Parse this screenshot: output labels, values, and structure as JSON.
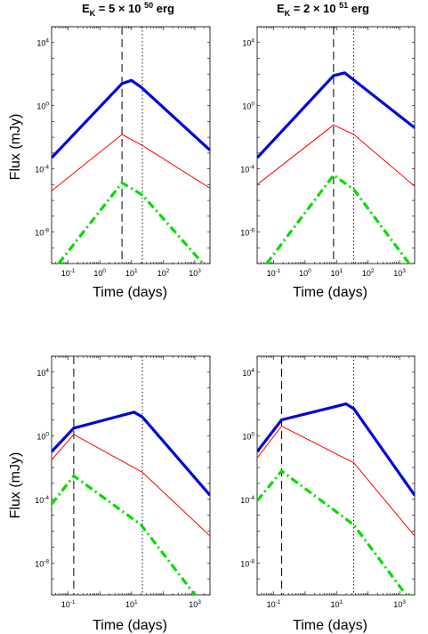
{
  "figure": {
    "column_titles": [
      {
        "prefix": "E",
        "sub": "K",
        "middle": " = 5 ",
        "times": "×",
        "base": " 10 ",
        "exp": "50",
        "unit": " erg"
      },
      {
        "prefix": "E",
        "sub": "K",
        "middle": " = 2 ",
        "times": "×",
        "base": " 10 ",
        "exp": "51",
        "unit": " erg"
      }
    ],
    "ylabel": "Flux (mJy)",
    "xlabel": "Time (days)",
    "tick_base": "10"
  },
  "chart_data": [
    {
      "type": "line",
      "x_scale": "log",
      "y_scale": "log",
      "xlim": [
        0.03,
        3000
      ],
      "ylim": [
        1e-10,
        100000.0
      ],
      "x_ticks": [
        {
          "base": "10",
          "exp": "-1"
        },
        {
          "base": "10",
          "exp": "0"
        },
        {
          "base": "10",
          "exp": "1"
        },
        {
          "base": "10",
          "exp": "2"
        },
        {
          "base": "10",
          "exp": "3"
        }
      ],
      "x_tick_values": [
        0.1,
        1,
        10,
        100,
        1000
      ],
      "y_ticks": [
        {
          "base": "10",
          "exp": "-8"
        },
        {
          "base": "10",
          "exp": "-4"
        },
        {
          "base": "10",
          "exp": "0"
        },
        {
          "base": "10",
          "exp": "4"
        }
      ],
      "y_tick_values": [
        1e-08,
        0.0001,
        1,
        10000.0
      ],
      "vlines": [
        {
          "x": 5,
          "style": "dashed"
        },
        {
          "x": 22,
          "style": "dotted"
        }
      ],
      "series": [
        {
          "style": "thick-solid",
          "color": "#0000dd",
          "x": [
            0.03,
            5,
            10,
            20,
            3000
          ],
          "y": [
            0.0005,
            25,
            40,
            15,
            0.0015
          ]
        },
        {
          "style": "thin-solid",
          "color": "#ff0000",
          "x": [
            0.03,
            5,
            22,
            3000
          ],
          "y": [
            4e-06,
            0.015,
            0.003,
            6e-06
          ]
        },
        {
          "style": "dash-dot",
          "color": "#00dd00",
          "x": [
            0.05,
            5,
            22,
            1800
          ],
          "y": [
            1e-10,
            1.3e-05,
            2.2e-06,
            1e-10
          ]
        }
      ]
    },
    {
      "type": "line",
      "x_scale": "log",
      "y_scale": "log",
      "xlim": [
        0.03,
        3000
      ],
      "ylim": [
        1e-10,
        100000.0
      ],
      "x_ticks": [
        {
          "base": "10",
          "exp": "-1"
        },
        {
          "base": "10",
          "exp": "0"
        },
        {
          "base": "10",
          "exp": "1"
        },
        {
          "base": "10",
          "exp": "2"
        },
        {
          "base": "10",
          "exp": "3"
        }
      ],
      "x_tick_values": [
        0.1,
        1,
        10,
        100,
        1000
      ],
      "y_ticks": [
        {
          "base": "10",
          "exp": "-8"
        },
        {
          "base": "10",
          "exp": "-4"
        },
        {
          "base": "10",
          "exp": "0"
        },
        {
          "base": "10",
          "exp": "4"
        }
      ],
      "y_tick_values": [
        1e-08,
        0.0001,
        1,
        10000.0
      ],
      "vlines": [
        {
          "x": 8,
          "style": "dashed"
        },
        {
          "x": 35,
          "style": "dotted"
        }
      ],
      "series": [
        {
          "style": "thick-solid",
          "color": "#0000dd",
          "x": [
            0.03,
            8,
            18,
            3000
          ],
          "y": [
            0.0005,
            80,
            120,
            0.04
          ]
        },
        {
          "style": "thin-solid",
          "color": "#ff0000",
          "x": [
            0.03,
            8,
            35,
            3000
          ],
          "y": [
            1e-05,
            0.06,
            0.015,
            8e-06
          ]
        },
        {
          "style": "dash-dot",
          "color": "#00dd00",
          "x": [
            0.06,
            8,
            35,
            2000
          ],
          "y": [
            1e-10,
            4e-05,
            5e-06,
            1e-10
          ]
        }
      ]
    },
    {
      "type": "line",
      "x_scale": "log",
      "y_scale": "log",
      "xlim": [
        0.03,
        3000
      ],
      "ylim": [
        1e-10,
        100000.0
      ],
      "x_ticks": [
        {
          "base": "10",
          "exp": "-1"
        },
        {
          "base": "10",
          "exp": "1"
        },
        {
          "base": "10",
          "exp": "3"
        }
      ],
      "x_tick_values": [
        0.1,
        10,
        1000
      ],
      "y_ticks": [
        {
          "base": "10",
          "exp": "-8"
        },
        {
          "base": "10",
          "exp": "-4"
        },
        {
          "base": "10",
          "exp": "0"
        },
        {
          "base": "10",
          "exp": "4"
        }
      ],
      "y_tick_values": [
        1e-08,
        0.0001,
        1,
        10000.0
      ],
      "vlines": [
        {
          "x": 0.15,
          "style": "dashed"
        },
        {
          "x": 22,
          "style": "dotted"
        }
      ],
      "series": [
        {
          "style": "thick-solid",
          "color": "#0000dd",
          "x": [
            0.03,
            0.15,
            12,
            22,
            3000
          ],
          "y": [
            0.1,
            3,
            30,
            15,
            0.00018
          ]
        },
        {
          "style": "thin-solid",
          "color": "#ff0000",
          "x": [
            0.03,
            0.15,
            22,
            3000
          ],
          "y": [
            0.03,
            1.2,
            0.005,
            5e-07
          ]
        },
        {
          "style": "dash-dot",
          "color": "#00dd00",
          "x": [
            0.03,
            0.15,
            20,
            1000
          ],
          "y": [
            5e-05,
            0.003,
            2.5e-06,
            1e-10
          ]
        }
      ]
    },
    {
      "type": "line",
      "x_scale": "log",
      "y_scale": "log",
      "xlim": [
        0.03,
        3000
      ],
      "ylim": [
        1e-10,
        100000.0
      ],
      "x_ticks": [
        {
          "base": "10",
          "exp": "-1"
        },
        {
          "base": "10",
          "exp": "1"
        },
        {
          "base": "10",
          "exp": "3"
        }
      ],
      "x_tick_values": [
        0.1,
        10,
        1000
      ],
      "y_ticks": [
        {
          "base": "10",
          "exp": "-8"
        },
        {
          "base": "10",
          "exp": "-4"
        },
        {
          "base": "10",
          "exp": "0"
        },
        {
          "base": "10",
          "exp": "4"
        }
      ],
      "y_tick_values": [
        1e-08,
        0.0001,
        1,
        10000.0
      ],
      "vlines": [
        {
          "x": 0.18,
          "style": "dashed"
        },
        {
          "x": 35,
          "style": "dotted"
        }
      ],
      "series": [
        {
          "style": "thick-solid",
          "color": "#0000dd",
          "x": [
            0.03,
            0.18,
            20,
            35,
            3000
          ],
          "y": [
            0.1,
            10,
            100,
            50,
            0.00018
          ]
        },
        {
          "style": "thin-solid",
          "color": "#ff0000",
          "x": [
            0.03,
            0.18,
            35,
            3000
          ],
          "y": [
            0.04,
            4,
            0.02,
            5e-07
          ]
        },
        {
          "style": "dash-dot",
          "color": "#00dd00",
          "x": [
            0.03,
            0.18,
            35,
            1600
          ],
          "y": [
            8e-05,
            0.006,
            2.5e-06,
            1e-10
          ]
        }
      ]
    }
  ]
}
